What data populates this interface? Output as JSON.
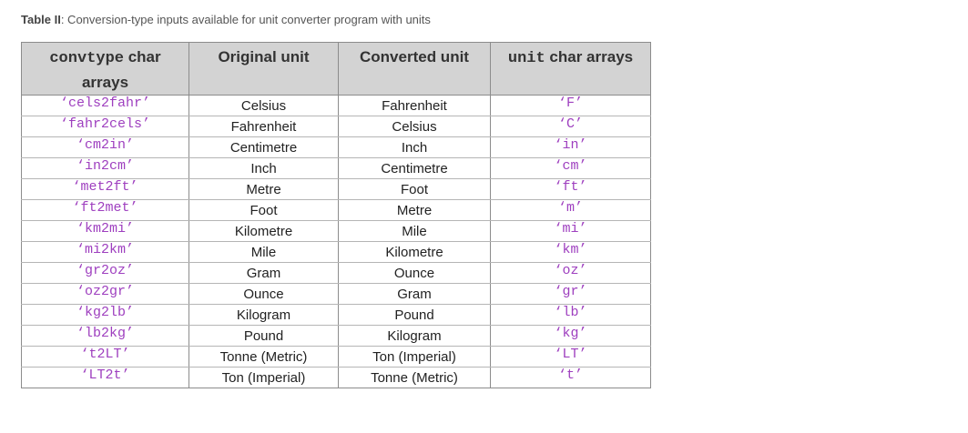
{
  "caption": {
    "label": "Table II",
    "text": ": Conversion-type inputs available for unit converter program with units"
  },
  "table": {
    "headers": {
      "col1_mono": "convtype",
      "col1_rest": " char arrays",
      "col2": "Original unit",
      "col3": "Converted unit",
      "col4_mono": "unit",
      "col4_rest": " char arrays"
    },
    "rows": [
      {
        "convtype": "‘cels2fahr’",
        "original": "Celsius",
        "converted": "Fahrenheit",
        "unit": "‘F’"
      },
      {
        "convtype": "‘fahr2cels’",
        "original": "Fahrenheit",
        "converted": "Celsius",
        "unit": "‘C’"
      },
      {
        "convtype": "‘cm2in’",
        "original": "Centimetre",
        "converted": "Inch",
        "unit": "‘in’"
      },
      {
        "convtype": "‘in2cm’",
        "original": "Inch",
        "converted": "Centimetre",
        "unit": "‘cm’"
      },
      {
        "convtype": "‘met2ft’",
        "original": "Metre",
        "converted": "Foot",
        "unit": "‘ft’"
      },
      {
        "convtype": "‘ft2met’",
        "original": "Foot",
        "converted": "Metre",
        "unit": "‘m’"
      },
      {
        "convtype": "‘km2mi’",
        "original": "Kilometre",
        "converted": "Mile",
        "unit": "‘mi’"
      },
      {
        "convtype": "‘mi2km’",
        "original": "Mile",
        "converted": "Kilometre",
        "unit": "‘km’"
      },
      {
        "convtype": "‘gr2oz’",
        "original": "Gram",
        "converted": "Ounce",
        "unit": "‘oz’"
      },
      {
        "convtype": "‘oz2gr’",
        "original": "Ounce",
        "converted": "Gram",
        "unit": "‘gr’"
      },
      {
        "convtype": "‘kg2lb’",
        "original": "Kilogram",
        "converted": "Pound",
        "unit": "‘lb’"
      },
      {
        "convtype": "‘lb2kg’",
        "original": "Pound",
        "converted": "Kilogram",
        "unit": "‘kg’"
      },
      {
        "convtype": "‘t2LT’",
        "original": "Tonne (Metric)",
        "converted": "Ton (Imperial)",
        "unit": "‘LT’"
      },
      {
        "convtype": "‘LT2t’",
        "original": "Ton (Imperial)",
        "converted": "Tonne (Metric)",
        "unit": "‘t’"
      }
    ]
  },
  "colors": {
    "code_text": "#9e3fbf",
    "header_bg": "#d3d3d3"
  }
}
